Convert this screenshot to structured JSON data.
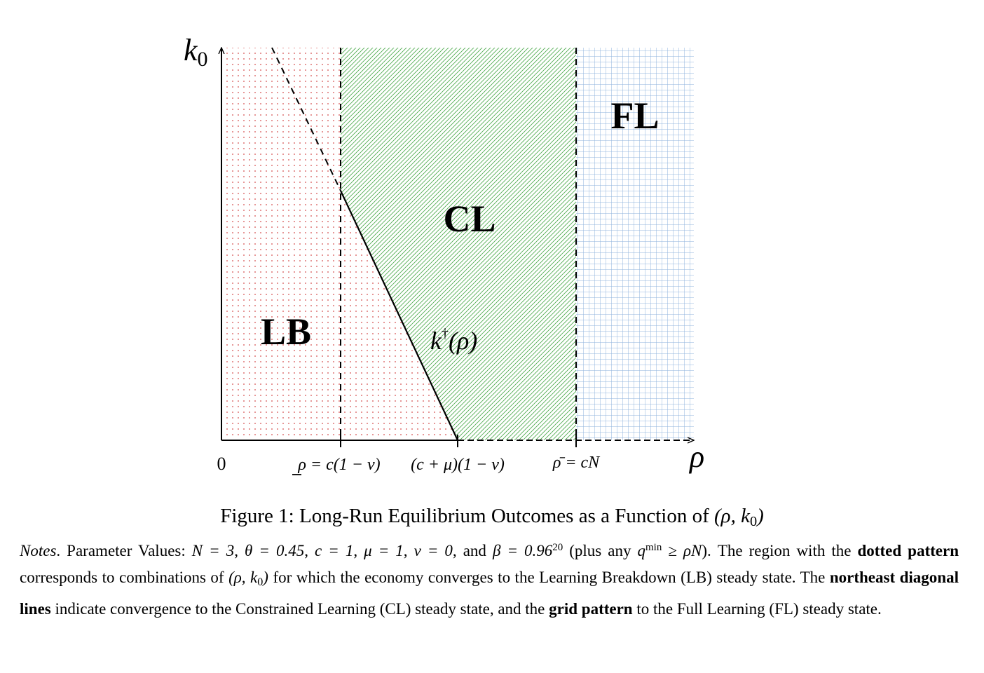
{
  "diagram": {
    "axis": {
      "y_label_main": "k",
      "y_label_sub": "0",
      "x_label": "ρ",
      "origin_label": "0"
    },
    "ticks": {
      "t1": "ρ = c(1 − ν)",
      "t2": "(c + μ)(1 − ν)",
      "t3": "ρ̄ = cN"
    },
    "regions": {
      "lb": "LB",
      "cl": "CL",
      "fl": "FL"
    },
    "curve_label": {
      "main": "k",
      "sup": "†",
      "arg": "(ρ)"
    },
    "colors": {
      "lb_pattern": "#e07a7a",
      "cl_pattern": "#4aa84a",
      "fl_pattern": "#8fb3dc",
      "lines": "#000000"
    }
  },
  "caption": {
    "prefix": "Figure 1: Long-Run Equilibrium Outcomes as a Function of ",
    "math": "(ρ, k",
    "math_sub": "0",
    "math_close": ")"
  },
  "notes": {
    "label": "Notes",
    "p1": ". Parameter Values: ",
    "N": "N = 3",
    "theta": "θ = 0.45",
    "c": "c = 1",
    "mu": "μ = 1",
    "nu": "ν = 0",
    "and": ", and ",
    "beta": "β = 0.96",
    "beta_exp": "20",
    "p2": " (plus any ",
    "q": "q",
    "q_sup": "min",
    "q_rest": " ≥ ρN",
    "p3": "). The region with the ",
    "dotted": "dotted pattern",
    "p4": " corresponds to combinations of ",
    "pair": "(ρ, k",
    "pair_sub": "0",
    "pair_close": ")",
    "p5": " for which the economy converges to the Learning Breakdown (LB) steady state. The ",
    "ne": "northeast diagonal lines",
    "p6": " indicate convergence to the Constrained Learning (CL) steady state, and the ",
    "grid": "grid pattern",
    "p7": " to the Full Learning (FL) steady state."
  }
}
